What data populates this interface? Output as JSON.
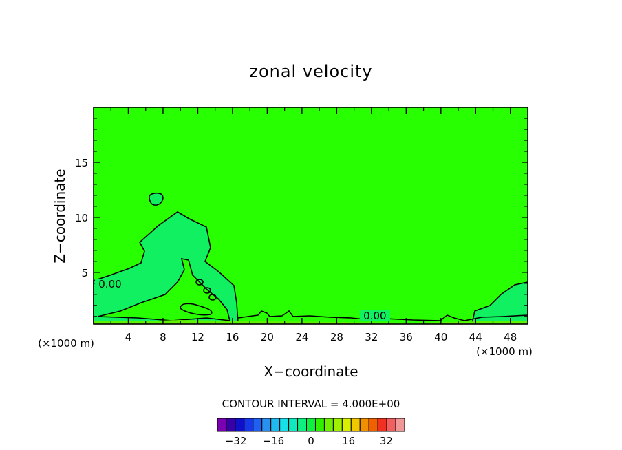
{
  "chart_data": {
    "type": "contour",
    "title": "zonal velocity",
    "xlabel": "X−coordinate",
    "ylabel": "Z−coordinate",
    "x_units_left": "(×1000 m)",
    "x_units_right": "(×1000 m)",
    "xlim": [
      0,
      50
    ],
    "ylim": [
      0.3,
      20
    ],
    "x_ticks": [
      4,
      8,
      12,
      16,
      20,
      24,
      28,
      32,
      36,
      40,
      44,
      48
    ],
    "x_tick_labels": [
      "4",
      "8",
      "12",
      "16",
      "20",
      "24",
      "28",
      "32",
      "36",
      "40",
      "44",
      "48"
    ],
    "y_ticks": [
      5,
      10,
      15
    ],
    "y_tick_labels": [
      "5",
      "10",
      "15"
    ],
    "contour_labels": [
      {
        "text": "0.00",
        "x": 1.9,
        "z": 3.6
      },
      {
        "text": "0.00",
        "x": 32.4,
        "z": 0.75
      }
    ],
    "contour_interval_text": "CONTOUR INTERVAL = 4.000E+00",
    "colorbar": {
      "levels": [
        -36,
        -32,
        -28,
        -24,
        -20,
        -16,
        -12,
        -8,
        -4,
        0,
        4,
        8,
        12,
        16,
        20,
        24,
        28,
        32,
        36
      ],
      "colors": [
        "#7b00b0",
        "#3a00a8",
        "#1010c8",
        "#1838e8",
        "#2060f0",
        "#2a90f0",
        "#20b8f0",
        "#18e0e8",
        "#10e8c0",
        "#10f080",
        "#10f040",
        "#30f000",
        "#70f000",
        "#a0f000",
        "#d8f000",
        "#f0c800",
        "#f09000",
        "#f06000",
        "#f03020",
        "#f06060",
        "#f09898"
      ],
      "tick_values": [
        -32,
        -16,
        0,
        16,
        32
      ],
      "tick_labels": [
        "−32",
        "−16",
        "0",
        "16",
        "32"
      ]
    },
    "colors": {
      "background_field": "#28ff00",
      "zero_region": "#10f060",
      "surface_band": "#60f000"
    }
  }
}
